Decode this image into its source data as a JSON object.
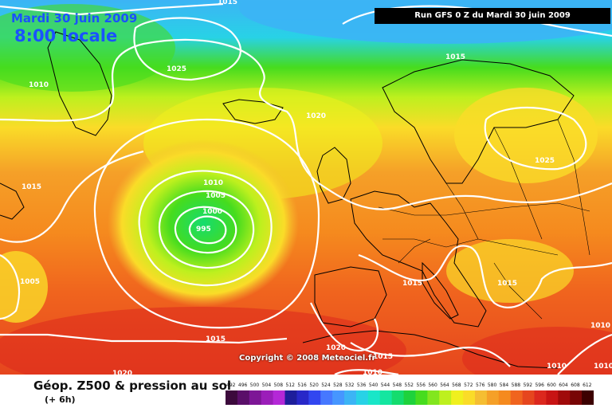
{
  "header": {
    "date": "Mardi 30 juin 2009",
    "time": "8:00 locale",
    "run": "Run GFS 0 Z du Mardi 30 juin 2009"
  },
  "copyright": "Copyright © 2008 Meteociel.fr",
  "footer": {
    "title": "Géop. Z500 & pression au sol",
    "subtitle": "(+ 6h)"
  },
  "isobar_labels": [
    "1015",
    "1015",
    "1010",
    "1025",
    "1020",
    "1010",
    "1005",
    "1000",
    "995",
    "1015",
    "1025",
    "1015",
    "1005",
    "1015",
    "1015",
    "1015",
    "1020",
    "1015",
    "1010",
    "1020",
    "1010",
    "1010",
    "1010"
  ],
  "legend": {
    "values": [
      "492",
      "496",
      "500",
      "504",
      "508",
      "512",
      "516",
      "520",
      "524",
      "528",
      "532",
      "536",
      "540",
      "544",
      "548",
      "552",
      "556",
      "560",
      "564",
      "568",
      "572",
      "576",
      "580",
      "584",
      "588",
      "592",
      "596",
      "600",
      "604",
      "608",
      "612"
    ],
    "colors": [
      "#3c0a3c",
      "#5a0f69",
      "#7d1696",
      "#9b1eb9",
      "#b428d7",
      "#1e1e9b",
      "#2828c8",
      "#3246f0",
      "#4678ff",
      "#4696ff",
      "#3cb4f5",
      "#28d2e6",
      "#19e6c8",
      "#14e6a0",
      "#14dc6e",
      "#1ed23c",
      "#46dc1e",
      "#82e61e",
      "#bef01e",
      "#f0f01e",
      "#fadc28",
      "#f5be32",
      "#f5a028",
      "#f58a1e",
      "#f0641e",
      "#e6461e",
      "#dc281e",
      "#c81414",
      "#a00a0a",
      "#780505",
      "#3c0000"
    ]
  }
}
